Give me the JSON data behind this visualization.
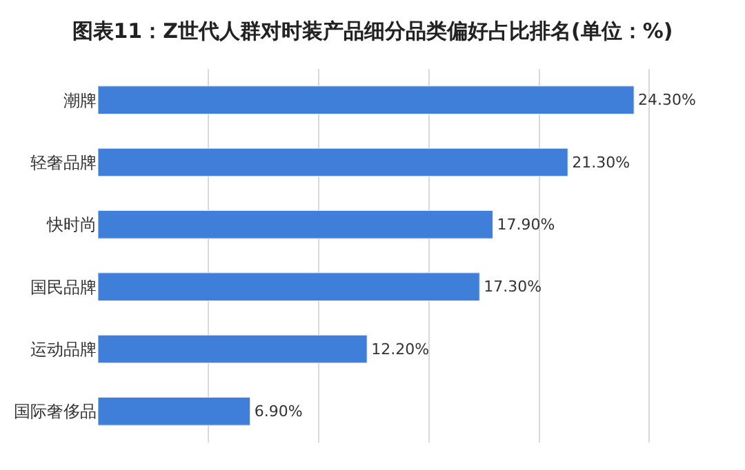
{
  "chart_data": {
    "type": "bar",
    "orientation": "horizontal",
    "title": "图表11：Z世代人群对时装产品细分品类偏好占比排名(单位：%)",
    "categories": [
      "潮牌",
      "轻奢品牌",
      "快时尚",
      "国民品牌",
      "运动品牌",
      "国际奢侈品"
    ],
    "values": [
      24.3,
      21.3,
      17.9,
      17.3,
      12.2,
      6.9
    ],
    "value_labels": [
      "24.30%",
      "21.30%",
      "17.90%",
      "17.30%",
      "12.20%",
      "6.90%"
    ],
    "color": "#3f7fd9",
    "grid": "x"
  }
}
